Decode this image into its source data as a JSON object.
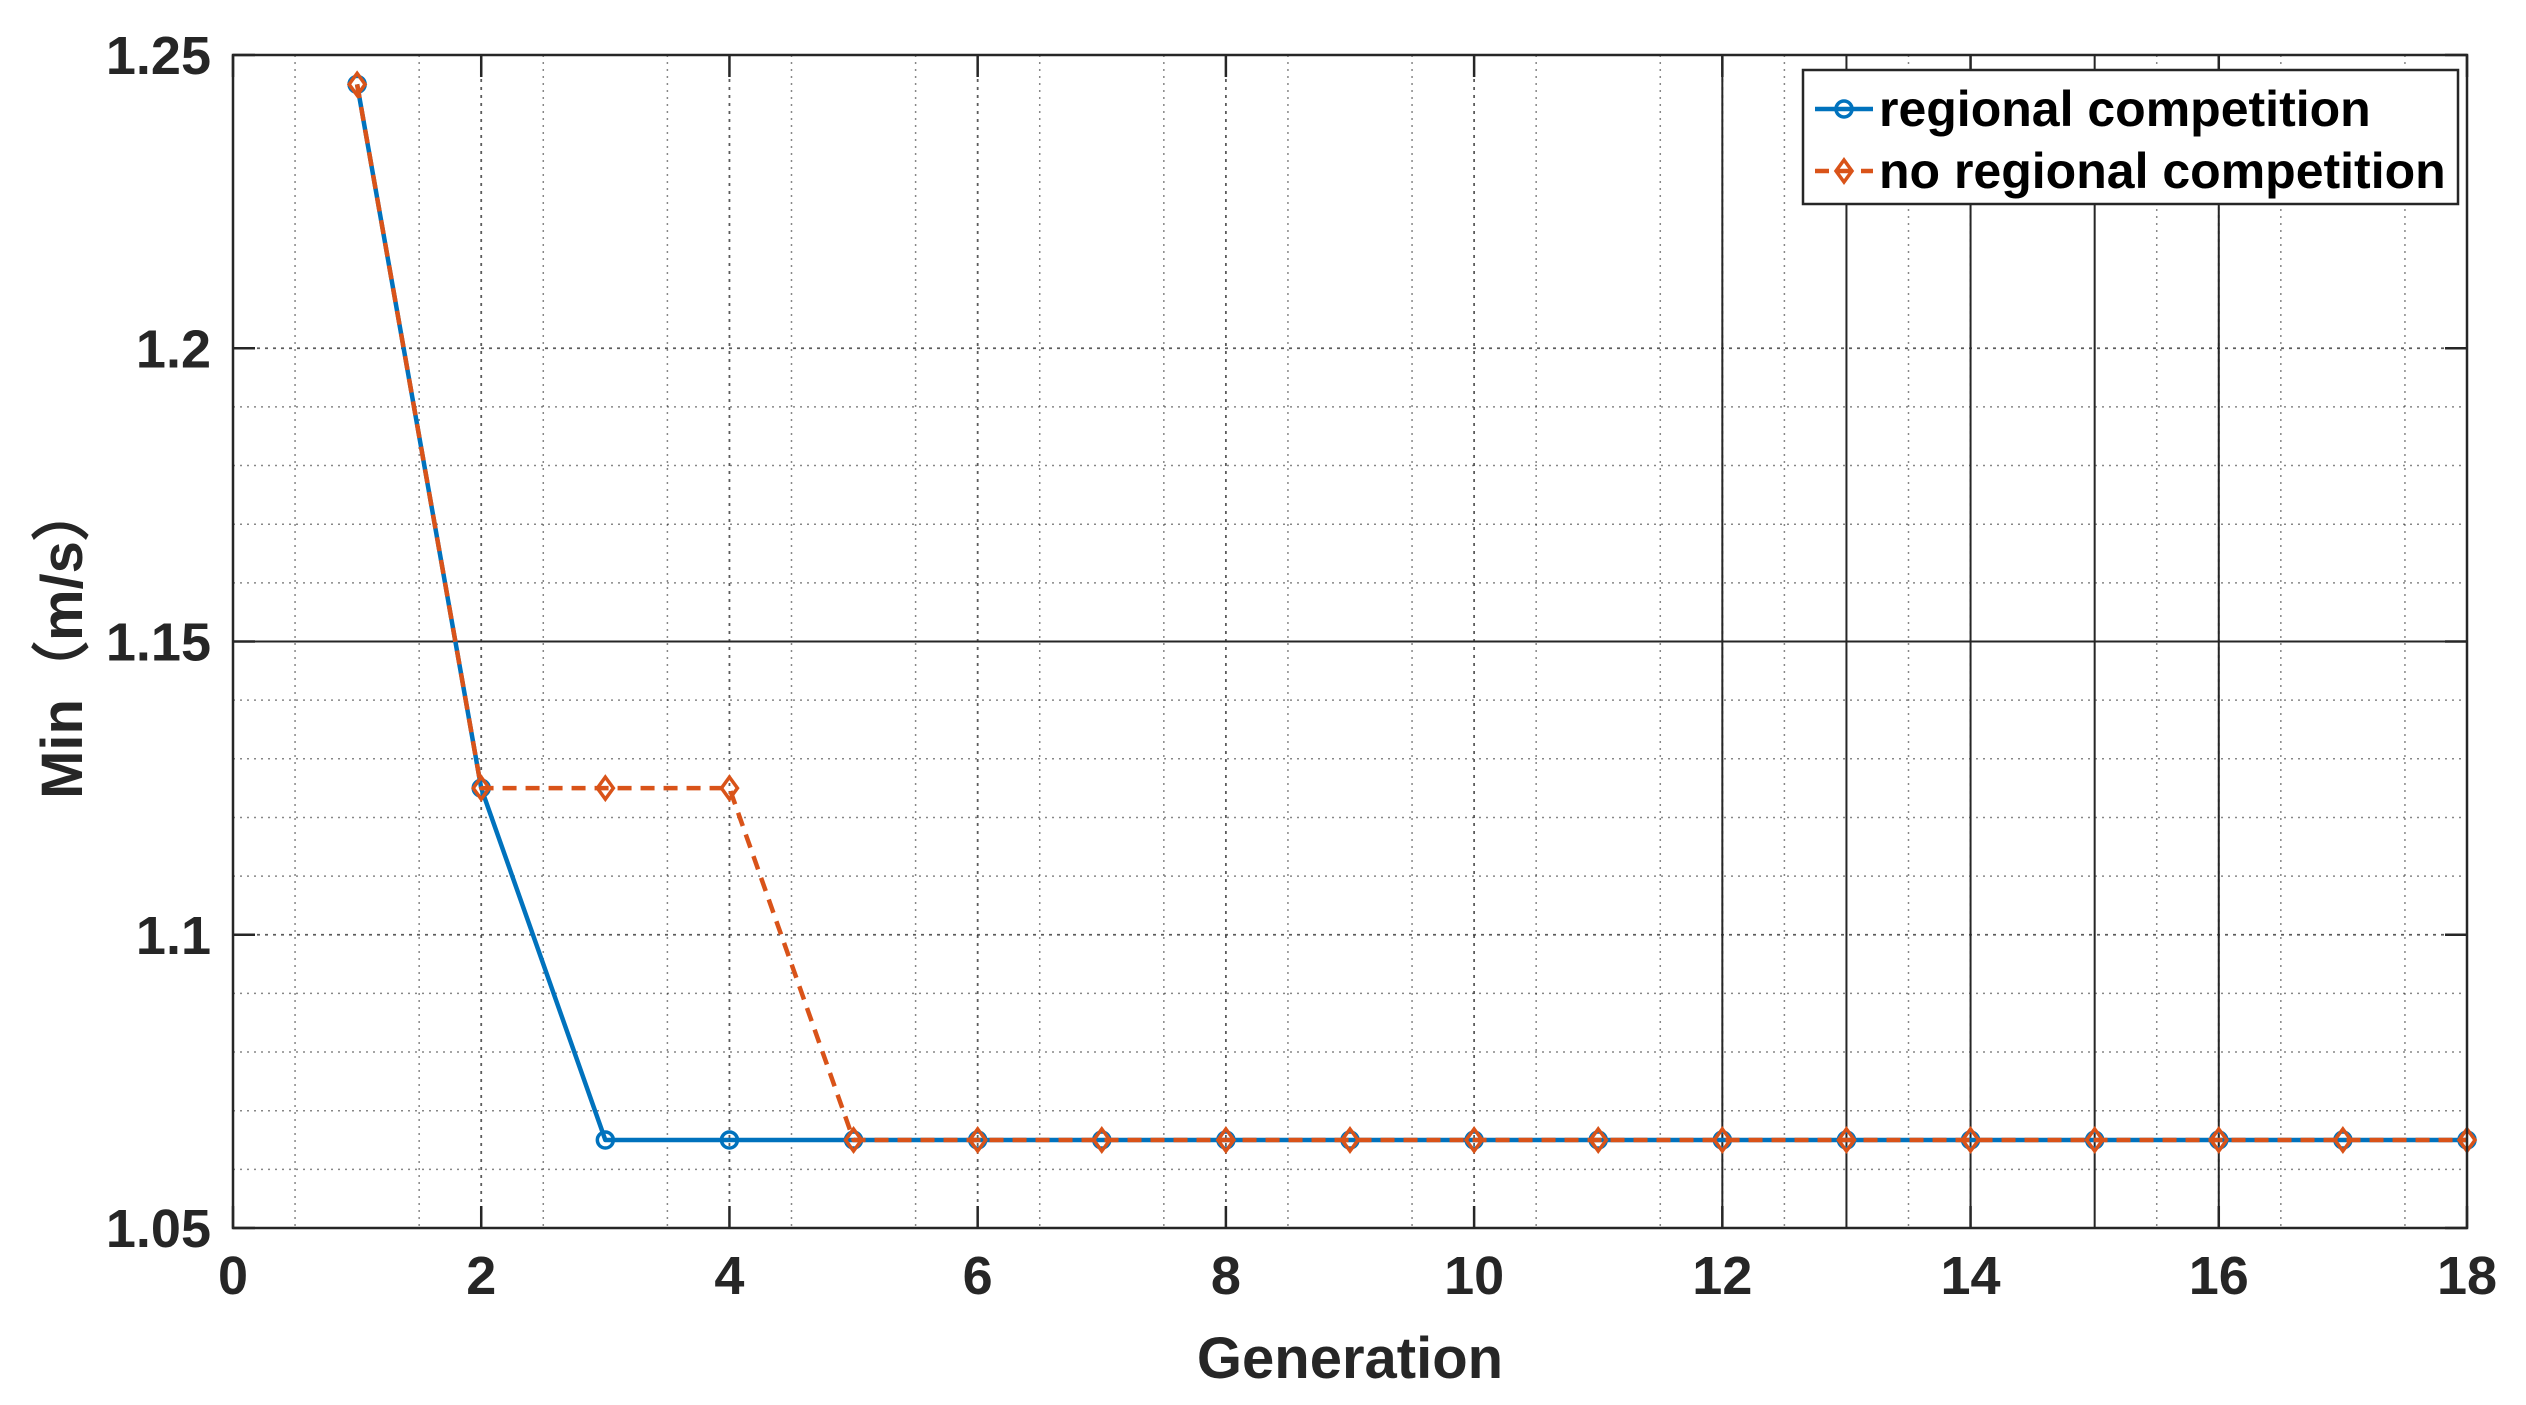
{
  "chart_data": {
    "type": "line",
    "title": "",
    "xlabel": "Generation",
    "ylabel": "Min（m/s）",
    "xlim": [
      0,
      18
    ],
    "ylim": [
      1.05,
      1.25
    ],
    "x_ticks": [
      0,
      2,
      4,
      6,
      8,
      10,
      12,
      14,
      16,
      18
    ],
    "y_ticks": [
      1.05,
      1.1,
      1.15,
      1.2,
      1.25
    ],
    "x_tick_labels": [
      "0",
      "2",
      "4",
      "6",
      "8",
      "10",
      "12",
      "14",
      "16",
      "18"
    ],
    "y_tick_labels": [
      "1.05",
      "1.1",
      "1.15",
      "1.2",
      "1.25"
    ],
    "grid": true,
    "legend_position": "top-right",
    "x": [
      1,
      2,
      3,
      4,
      5,
      6,
      7,
      8,
      9,
      10,
      11,
      12,
      13,
      14,
      15,
      16,
      17,
      18
    ],
    "series": [
      {
        "name": "regional competition",
        "color": "#0072BD",
        "line_style": "solid",
        "marker": "circle",
        "values": [
          1.245,
          1.125,
          1.065,
          1.065,
          1.065,
          1.065,
          1.065,
          1.065,
          1.065,
          1.065,
          1.065,
          1.065,
          1.065,
          1.065,
          1.065,
          1.065,
          1.065,
          1.065
        ]
      },
      {
        "name": "no regional competition",
        "color": "#D95319",
        "line_style": "dashed",
        "marker": "diamond",
        "values": [
          1.245,
          1.125,
          1.125,
          1.125,
          1.065,
          1.065,
          1.065,
          1.065,
          1.065,
          1.065,
          1.065,
          1.065,
          1.065,
          1.065,
          1.065,
          1.065,
          1.065,
          1.065
        ]
      }
    ],
    "minor_x_gridlines": [
      0.5,
      1.5,
      2.5,
      3.5,
      4.5,
      5.5,
      6.5,
      7.5,
      8.5,
      9.5,
      10.5,
      11.5,
      12.5,
      13.5,
      15.5,
      16.5,
      17.5
    ],
    "extra_x_gridlines": [
      12,
      13,
      14,
      15,
      16
    ],
    "minor_y_gridlines": [
      1.06,
      1.07,
      1.08,
      1.09,
      1.11,
      1.12,
      1.13,
      1.14,
      1.16,
      1.17,
      1.18,
      1.19
    ],
    "extra_y_gridlines": [
      1.15
    ],
    "colors": {
      "axis": "#262626",
      "grid": "#262626",
      "background": "#ffffff"
    }
  }
}
